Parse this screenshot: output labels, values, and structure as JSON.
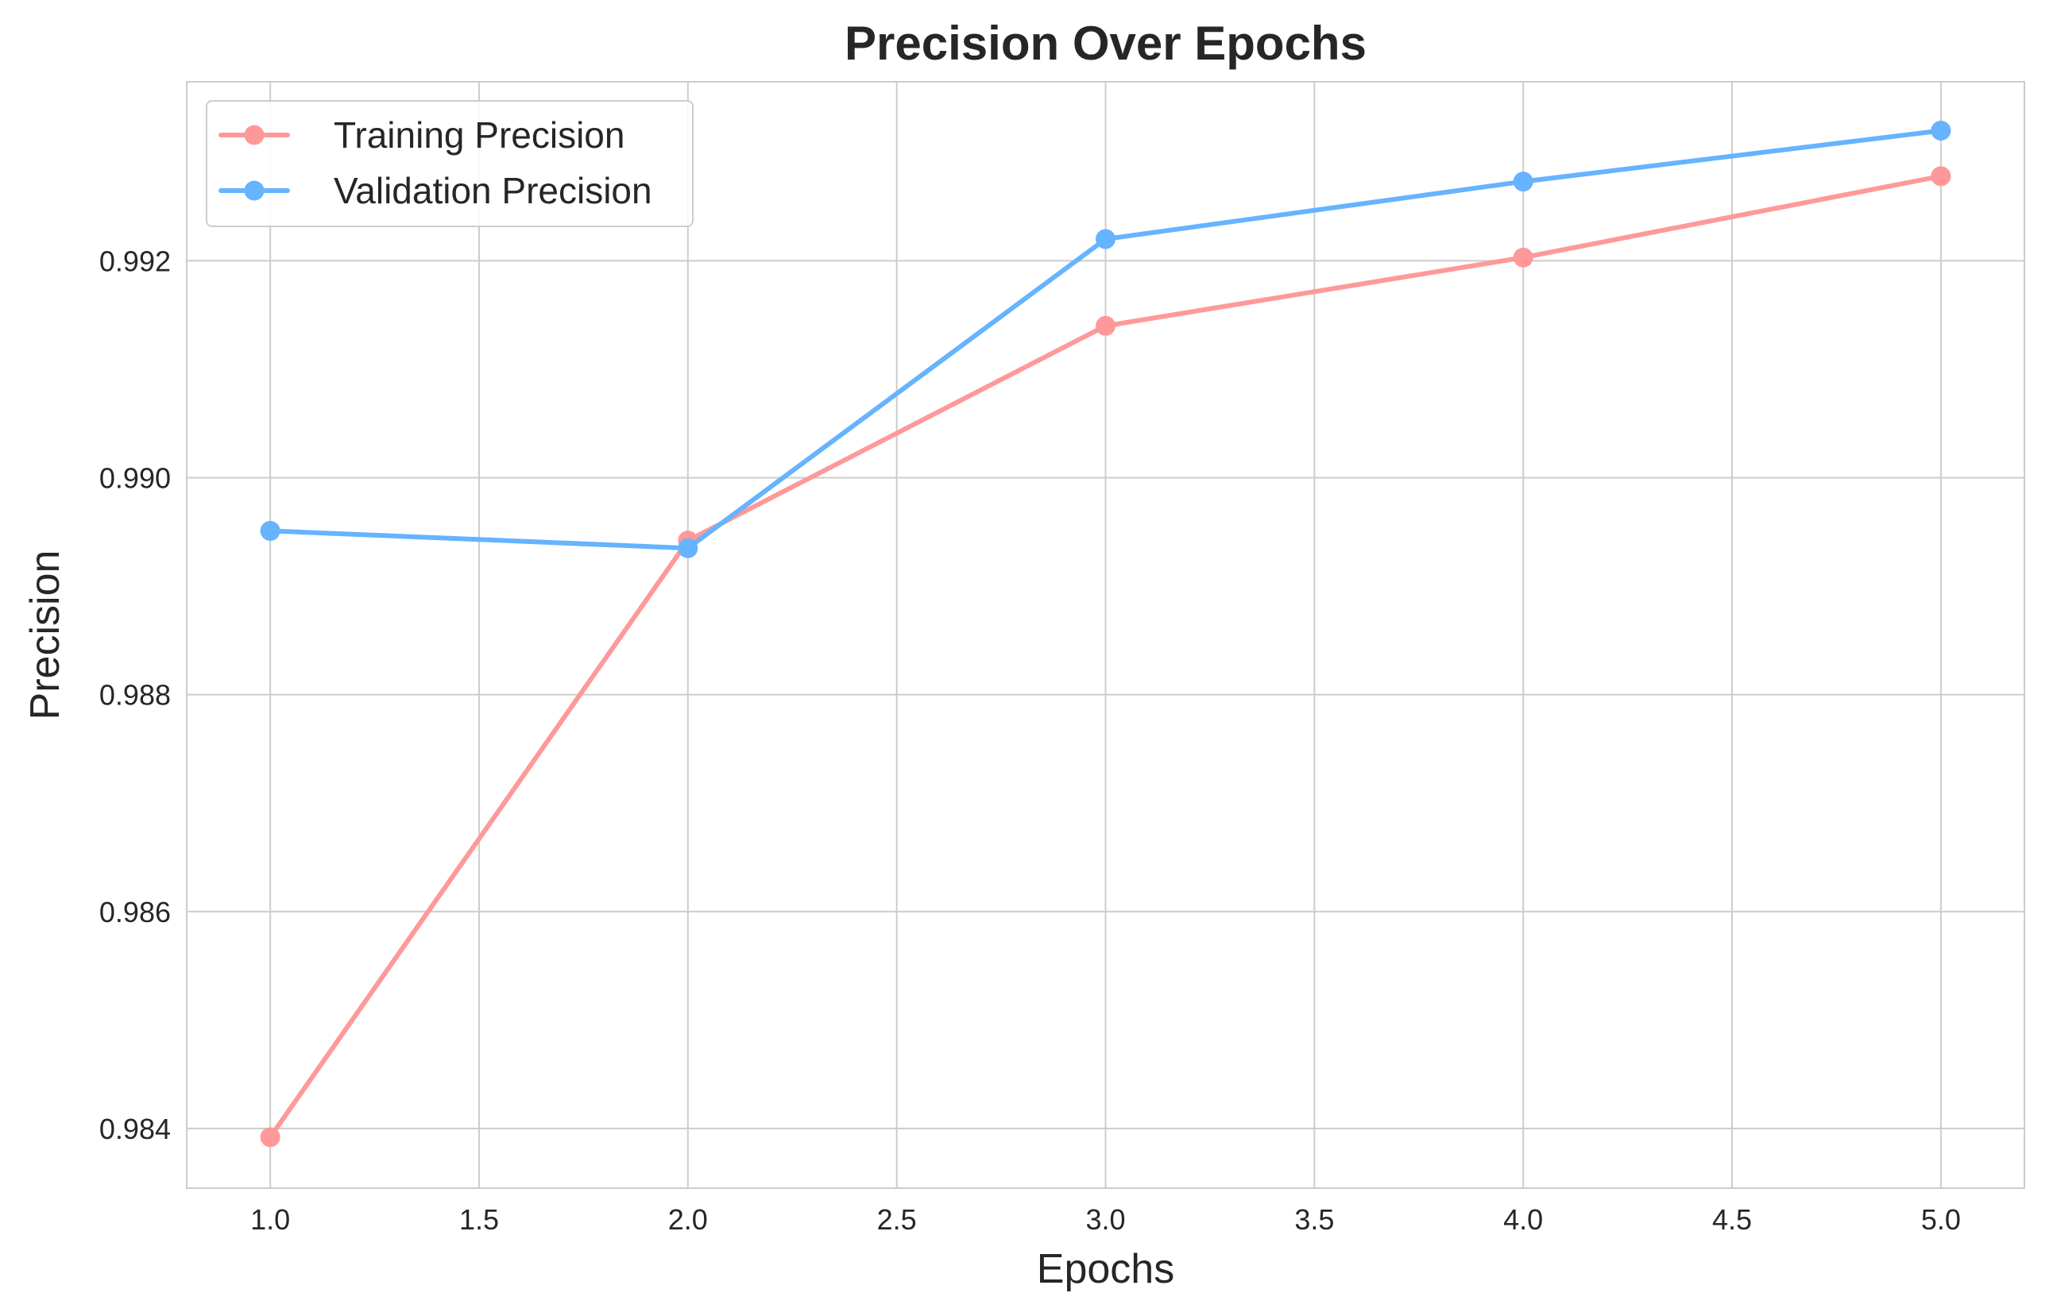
{
  "chart_data": {
    "type": "line",
    "title": "Precision Over Epochs",
    "xlabel": "Epochs",
    "ylabel": "Precision",
    "x": [
      1,
      2,
      3,
      4,
      5
    ],
    "xlim": [
      0.8,
      5.2
    ],
    "ylim": [
      0.98345,
      0.99365
    ],
    "xticks": [
      "1.0",
      "1.5",
      "2.0",
      "2.5",
      "3.0",
      "3.5",
      "4.0",
      "4.5",
      "5.0"
    ],
    "yticks": [
      "0.984",
      "0.986",
      "0.988",
      "0.990",
      "0.992"
    ],
    "grid": true,
    "legend_position": "top-left",
    "series": [
      {
        "name": "Training Precision",
        "color": "#ff9999",
        "values": [
          0.98392,
          0.98942,
          0.9914,
          0.99203,
          0.99278
        ]
      },
      {
        "name": "Validation Precision",
        "color": "#66b3ff",
        "values": [
          0.98951,
          0.98935,
          0.9922,
          0.99273,
          0.9932
        ]
      }
    ]
  }
}
